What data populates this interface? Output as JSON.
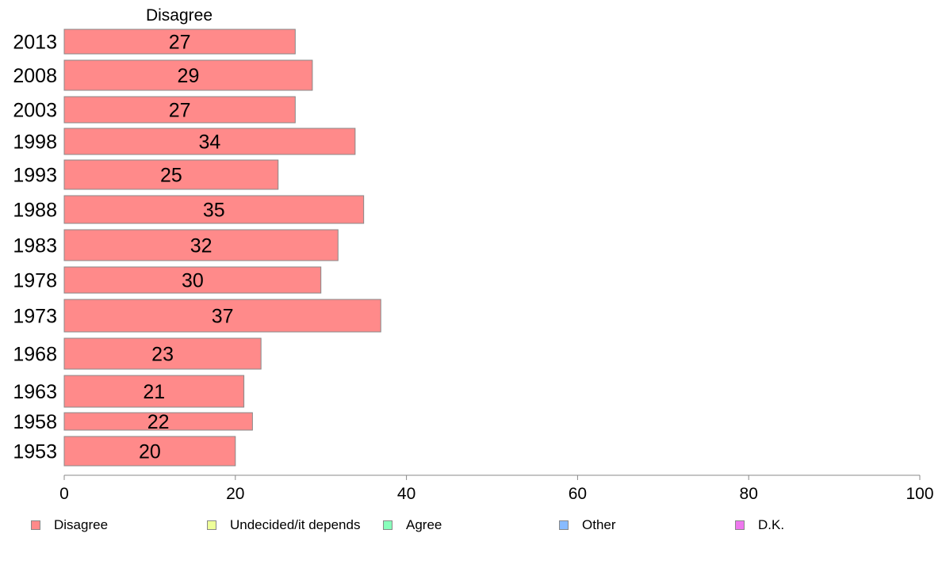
{
  "chart_data": {
    "type": "bar",
    "orientation": "horizontal",
    "title": "Disagree",
    "categories": [
      "2013",
      "2008",
      "2003",
      "1998",
      "1993",
      "1988",
      "1983",
      "1978",
      "1973",
      "1968",
      "1963",
      "1958",
      "1953"
    ],
    "series": [
      {
        "name": "Disagree",
        "color": "#ff8a8a",
        "values": [
          27,
          29,
          27,
          34,
          25,
          35,
          32,
          30,
          37,
          23,
          21,
          22,
          20
        ]
      }
    ],
    "x_ticks": [
      "0",
      "20",
      "40",
      "60",
      "80",
      "100"
    ],
    "xlim": [
      0,
      100
    ],
    "grid": false,
    "legend_position": "bottom",
    "legend": [
      {
        "label": "Disagree",
        "color": "#ff8a8a"
      },
      {
        "label": "Undecided/it depends",
        "color": "#eeff99"
      },
      {
        "label": "Agree",
        "color": "#88ffbb"
      },
      {
        "label": "Other",
        "color": "#88bbff"
      },
      {
        "label": "D.K.",
        "color": "#ee77ee"
      }
    ]
  }
}
